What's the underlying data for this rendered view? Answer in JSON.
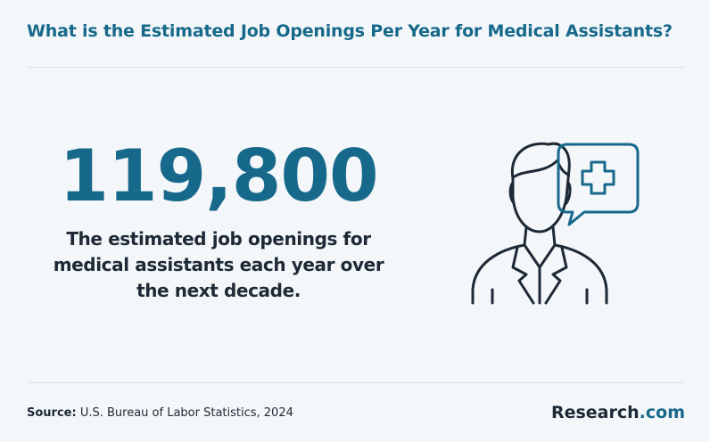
{
  "header": {
    "title": "What is the Estimated Job Openings Per Year for Medical Assistants?"
  },
  "stat": {
    "value": "119,800",
    "description": [
      "The estimated job openings for",
      "medical assistants each year over",
      "the next decade."
    ]
  },
  "footer": {
    "source_label": "Source:",
    "source_text": "U.S. Bureau of Labor Statistics, 2024",
    "brand": {
      "name": "Research",
      "suffix": ".com"
    }
  }
}
